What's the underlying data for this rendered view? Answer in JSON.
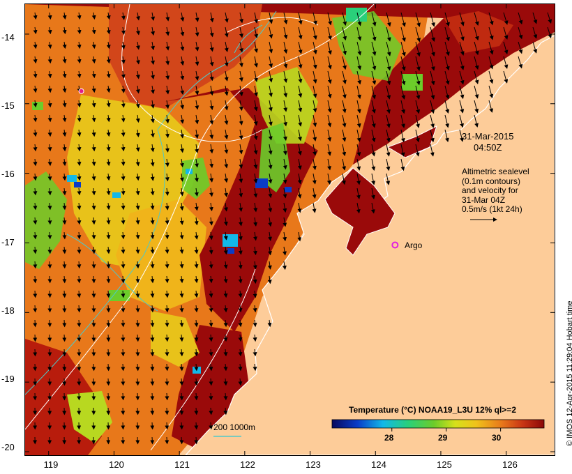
{
  "map": {
    "y_ticks": [
      "-14",
      "-15",
      "-16",
      "-17",
      "-18",
      "-19",
      "-20"
    ],
    "x_ticks": [
      "119",
      "120",
      "121",
      "122",
      "123",
      "124",
      "125",
      "126"
    ],
    "lon_range": [
      118.64,
      126.74
    ],
    "lat_range": [
      -13.57,
      -20.05
    ],
    "date_line1": "31-Mar-2015",
    "date_line2": "04:50Z",
    "altimetry_lines": [
      "Altimetric sealevel",
      "(0.1m contours)",
      "and velocity for",
      "31-Mar 04Z",
      "0.5m/s (1kt 24h)"
    ],
    "argo_label": "Argo",
    "argo_position": {
      "lon": 124.3,
      "lat": -17.03
    },
    "mooring_position": {
      "lon": 119.5,
      "lat": -14.82
    },
    "depth_contour_label": "200  1000m",
    "colorbar_title": "Temperature (°C) NOAA19_L3U 12% ql>=2",
    "colorbar_ticks": [
      "28",
      "29",
      "30"
    ],
    "colorbar_range": [
      26.9,
      30.8
    ],
    "credit": "© IMOS 12-Apr-2015 11:29:04 Hobart time"
  },
  "colors": {
    "land": "#fdcc99",
    "warm": "#9a0a0a",
    "orange": "#e8781a",
    "yellow": "#e8c21a",
    "green": "#6ccc2a",
    "cyan_contour": "#4ec9c9",
    "argo": "#e020e0",
    "mooring": "#e0208a"
  },
  "icons": {
    "argo": "magenta-circle-icon",
    "mooring": "magenta-dot-icon",
    "velocity": "arrow-icon"
  }
}
